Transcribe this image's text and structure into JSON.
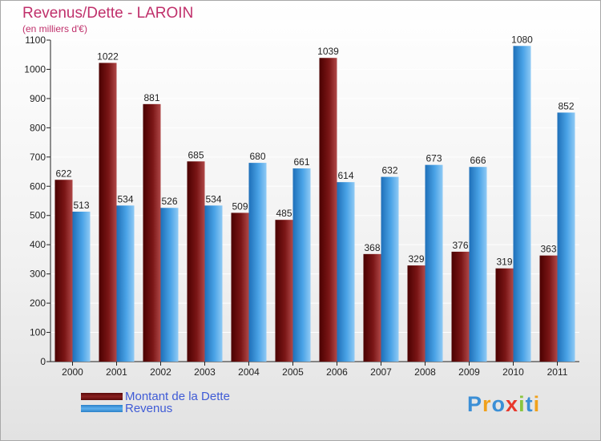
{
  "title": "Revenus/Dette - LAROIN",
  "subtitle": "(en milliers d'€)",
  "logo": {
    "text": "Proxiti",
    "colors": [
      "#3b8fd6",
      "#f0a11c",
      "#3b8fd6",
      "#e8382c",
      "#8ac53e",
      "#3b8fd6",
      "#f0a11c"
    ]
  },
  "chart_data": {
    "type": "bar",
    "categories": [
      "2000",
      "2001",
      "2002",
      "2003",
      "2004",
      "2005",
      "2006",
      "2007",
      "2008",
      "2009",
      "2010",
      "2011"
    ],
    "series": [
      {
        "name": "Montant de la Dette",
        "color": "#7a1616",
        "values": [
          622,
          1022,
          881,
          685,
          509,
          485,
          1039,
          368,
          329,
          376,
          319,
          363
        ]
      },
      {
        "name": "Revenus",
        "color": "#4aa3e6",
        "values": [
          513,
          534,
          526,
          534,
          680,
          661,
          614,
          632,
          673,
          666,
          1080,
          852
        ]
      }
    ],
    "ylim": [
      0,
      1100
    ],
    "yticks": [
      0,
      100,
      200,
      300,
      400,
      500,
      600,
      700,
      800,
      900,
      1000,
      1100
    ],
    "grid": true,
    "legend_position": "bottom-left"
  }
}
